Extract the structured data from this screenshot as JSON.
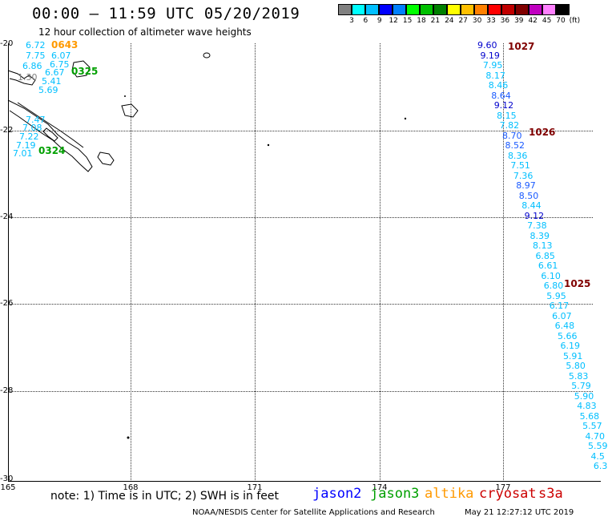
{
  "header": {
    "title": "00:00 – 11:59 UTC 05/20/2019",
    "subtitle": "12 hour collection of altimeter wave heights"
  },
  "colorbar": {
    "colors": [
      "#808080",
      "#00ffff",
      "#00bfff",
      "#0000ff",
      "#0080ff",
      "#00ff00",
      "#00c000",
      "#008000",
      "#ffff00",
      "#ffc000",
      "#ff8000",
      "#ff0000",
      "#c00000",
      "#800000",
      "#c000c0",
      "#ff80ff",
      "#000000"
    ],
    "tick_values": [
      "3",
      "6",
      "9",
      "12",
      "15",
      "18",
      "21",
      "24",
      "27",
      "30",
      "33",
      "36",
      "39",
      "42",
      "45",
      "70",
      "(ft)"
    ]
  },
  "axes": {
    "lat_labels": [
      "-20",
      "-22",
      "-24",
      "-26",
      "-28",
      "-30"
    ],
    "lon_labels": [
      "165",
      "168",
      "171",
      "174",
      "177"
    ]
  },
  "track_left": {
    "values": [
      "6.72",
      "7.75",
      "6.86",
      "1.30",
      "6.07",
      "6.75",
      "6.67",
      "5.41",
      "5.69",
      "7.47",
      "7.08",
      "7.22",
      "7.19",
      "7.01"
    ],
    "time_labels": [
      "0643",
      "0325",
      "0324"
    ]
  },
  "track_right": {
    "values": [
      "9.60",
      "9.19",
      "7.95",
      "8.17",
      "8.46",
      "8.64",
      "9.12",
      "8.15",
      "7.82",
      "8.70",
      "8.52",
      "8.36",
      "7.51",
      "7.36",
      "8.97",
      "8.50",
      "8.44",
      "9.12",
      "7.38",
      "8.39",
      "8.13",
      "6.85",
      "6.61",
      "6.10",
      "6.80",
      "5.95",
      "6.17",
      "6.07",
      "6.48",
      "5.66",
      "6.19",
      "5.91",
      "5.80",
      "5.83",
      "5.79",
      "5.90",
      "4.83",
      "5.68",
      "5.57",
      "4.70",
      "5.59",
      "4.5",
      "6.3"
    ],
    "time_labels": [
      "1027",
      "1026",
      "1025"
    ]
  },
  "footer": {
    "note": "note: 1) Time is in UTC; 2) SWH is in feet",
    "legend": [
      {
        "name": "jason2",
        "color": "#0000ff"
      },
      {
        "name": "jason3",
        "color": "#00a000"
      },
      {
        "name": "altika",
        "color": "#ff9900"
      },
      {
        "name": "cryosat",
        "color": "#cc0000"
      },
      {
        "name": "s3a",
        "color": "#cc0000"
      }
    ],
    "credit": "NOAA/NESDIS Center for Satellite Applications and Research",
    "timestamp": "May 21 12:27:12 UTC 2019"
  }
}
